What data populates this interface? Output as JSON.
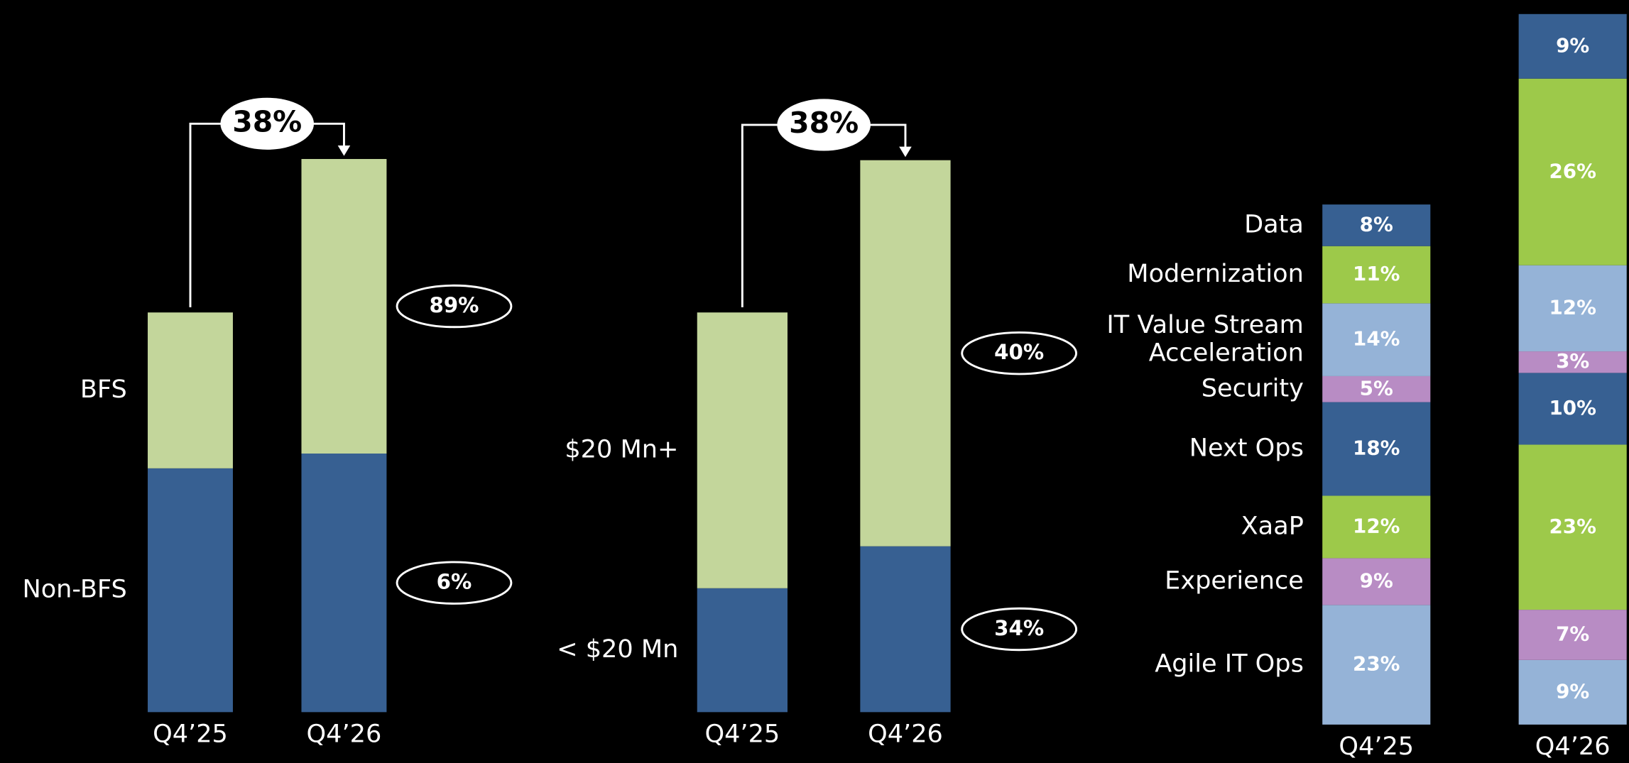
{
  "chart_data": [
    {
      "type": "stacked_bar",
      "categories": [
        "Q4’25",
        "Q4’26"
      ],
      "series": [
        {
          "name": "Non-BFS",
          "color": "#376092",
          "values": [
            61,
            64.7
          ],
          "growth_label": "6%"
        },
        {
          "name": "BFS",
          "color": "#c3d69b",
          "values": [
            39,
            73.7
          ],
          "growth_label": "89%"
        }
      ],
      "growth_label": "38%"
    },
    {
      "type": "stacked_bar",
      "categories": [
        "Q4’25",
        "Q4’26"
      ],
      "series": [
        {
          "name": "< $20 Mn",
          "color": "#376092",
          "values": [
            31,
            41.5
          ],
          "growth_label": "34%"
        },
        {
          "name": "$20 Mn+",
          "color": "#c3d69b",
          "values": [
            69,
            96.6
          ],
          "growth_label": "40%"
        }
      ],
      "growth_label": "38%"
    },
    {
      "type": "stacked_bar_share",
      "categories": [
        "Q4’25",
        "Q4’26"
      ],
      "category_totals": [
        100,
        138
      ],
      "series": [
        {
          "name": "Agile IT Ops",
          "color": "#95b3d7",
          "values": [
            23,
            9
          ],
          "value_labels": [
            "23%",
            "9%"
          ]
        },
        {
          "name": "Experience",
          "color": "#b88cc4",
          "values": [
            9,
            7
          ],
          "value_labels": [
            "9%",
            "7%"
          ]
        },
        {
          "name": "XaaP",
          "color": "#9dc94a",
          "values": [
            12,
            23
          ],
          "value_labels": [
            "12%",
            "23%"
          ]
        },
        {
          "name": "Next Ops",
          "color": "#376092",
          "values": [
            18,
            10
          ],
          "value_labels": [
            "18%",
            "10%"
          ]
        },
        {
          "name": "Security",
          "color": "#b88cc4",
          "values": [
            5,
            3
          ],
          "value_labels": [
            "5%",
            "3%"
          ]
        },
        {
          "name": "IT Value Stream\nAcceleration",
          "color": "#95b3d7",
          "values": [
            14,
            12
          ],
          "value_labels": [
            "14%",
            "12%"
          ]
        },
        {
          "name": "Modernization",
          "color": "#9dc94a",
          "values": [
            11,
            26
          ],
          "value_labels": [
            "11%",
            "26%"
          ]
        },
        {
          "name": "Data",
          "color": "#376092",
          "values": [
            8,
            9
          ],
          "value_labels": [
            "8%",
            "9%"
          ]
        }
      ]
    }
  ]
}
